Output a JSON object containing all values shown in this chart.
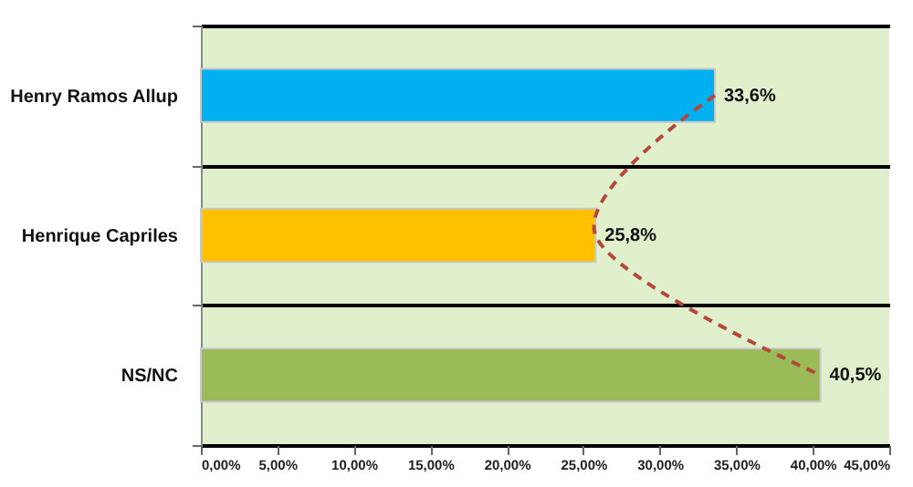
{
  "chart_data": {
    "type": "bar",
    "orientation": "horizontal",
    "categories": [
      "Henry Ramos Allup",
      "Henrique Capriles",
      "NS/NC"
    ],
    "series": [
      {
        "colors": [
          "#00b0f0",
          "#ffc000",
          "#9bbb59"
        ],
        "values": [
          33.6,
          25.8,
          40.5
        ],
        "value_labels": [
          "33,6%",
          "25,8%",
          "40,5%"
        ]
      },
      {
        "type": "line",
        "color": "#b5473a",
        "line_style": "dashed",
        "marker": "none",
        "values": [
          33.6,
          25.8,
          40.5
        ]
      }
    ],
    "xlim": [
      0,
      45
    ],
    "xticks": [
      {
        "value": 0,
        "label": "0,00%"
      },
      {
        "value": 5,
        "label": "5,00%"
      },
      {
        "value": 10,
        "label": "10,00%"
      },
      {
        "value": 15,
        "label": "15,00%"
      },
      {
        "value": 20,
        "label": "20,00%"
      },
      {
        "value": 25,
        "label": "25,00%"
      },
      {
        "value": 30,
        "label": "30,00%"
      },
      {
        "value": 35,
        "label": "35,00%"
      },
      {
        "value": 40,
        "label": "40,00%"
      },
      {
        "value": 45,
        "label": "45,00%"
      }
    ],
    "grid": "y"
  }
}
